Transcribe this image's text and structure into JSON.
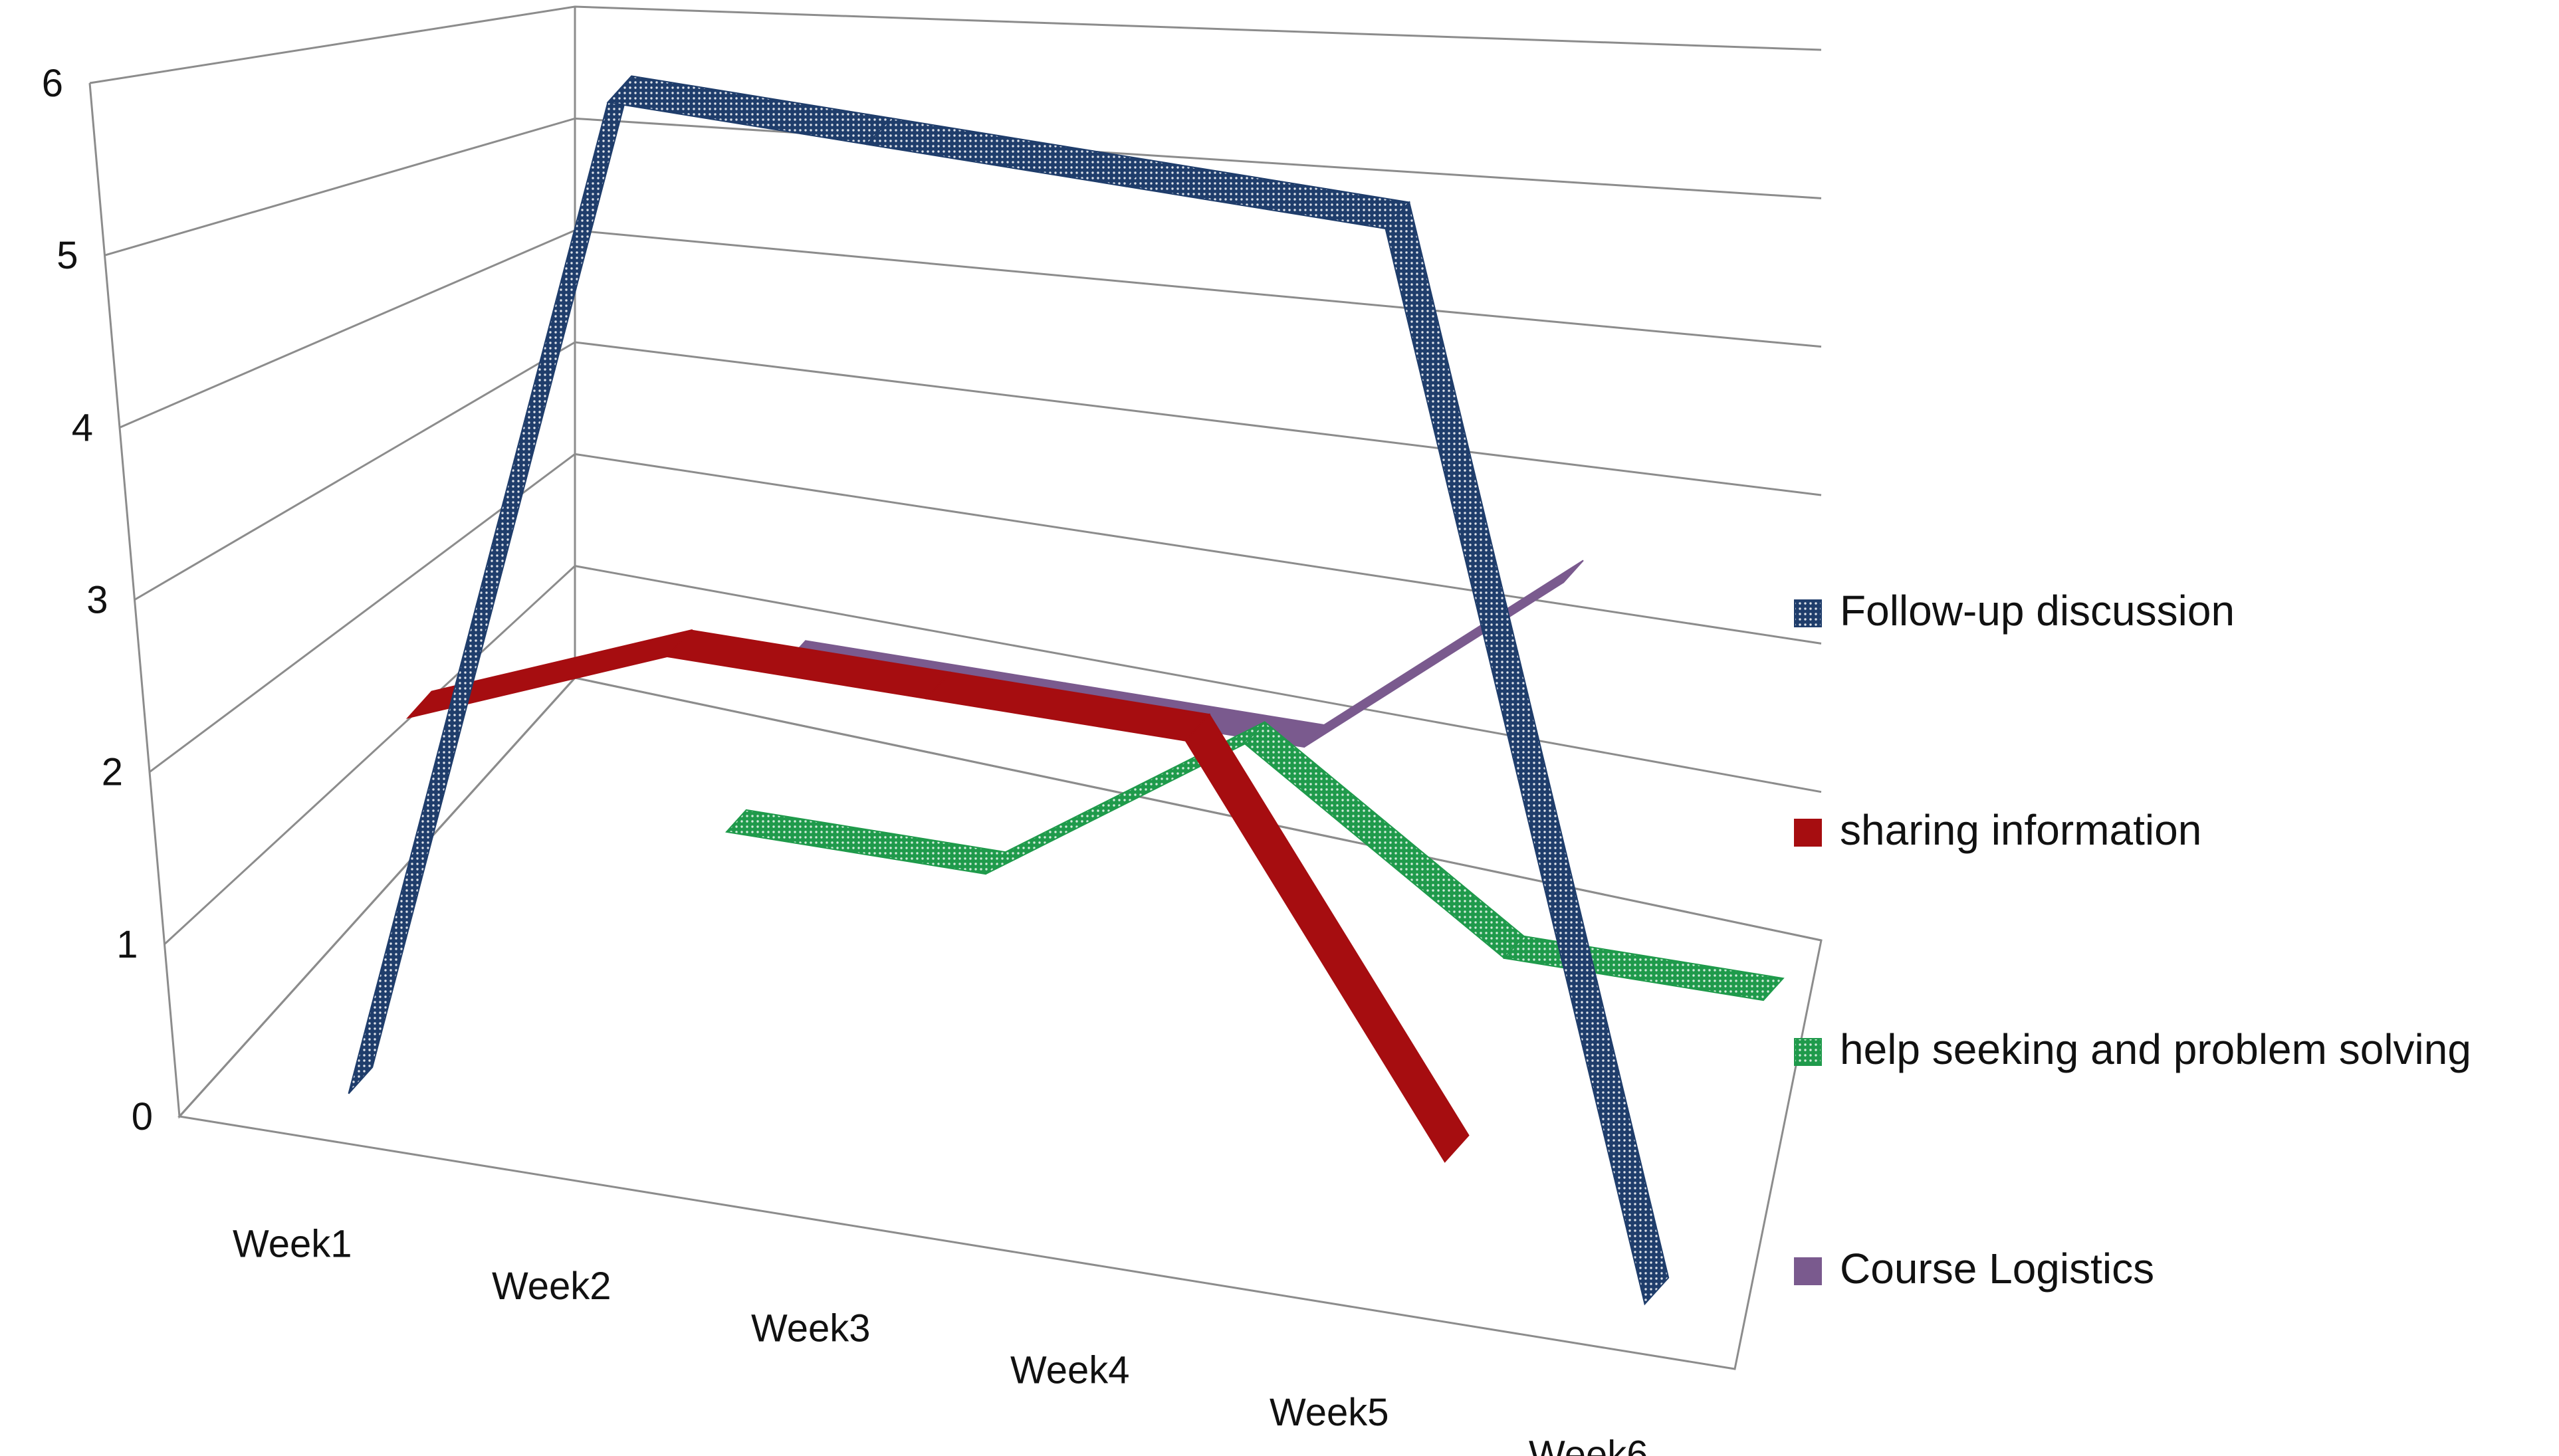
{
  "chart_data": {
    "type": "line",
    "style": "3d-ribbon",
    "categories": [
      "Week1",
      "Week2",
      "Week3",
      "Week4",
      "Week5",
      "Week6"
    ],
    "ylim": [
      0,
      6
    ],
    "yticks": [
      0,
      1,
      2,
      3,
      4,
      5,
      6
    ],
    "grid": true,
    "legend_position": "right",
    "series": [
      {
        "name": "Course Logistics",
        "values": [
          null,
          1.6,
          1.6,
          1.6,
          2.8,
          null
        ],
        "color": "#7a5a8e",
        "pattern": "solid"
      },
      {
        "name": "help seeking and problem solving",
        "values": [
          null,
          1,
          1,
          2,
          1,
          1
        ],
        "color": "#1f9a4b",
        "pattern": "dots"
      },
      {
        "name": "sharing information",
        "values": [
          1.8,
          2.4,
          2.4,
          2.4,
          0.2,
          null
        ],
        "color": "#a60d10",
        "pattern": "solid"
      },
      {
        "name": "Follow-up discussion",
        "values": [
          0,
          6,
          6,
          6,
          6,
          0
        ],
        "color": "#1f3d6b",
        "pattern": "dots"
      }
    ],
    "legend_order": [
      "Follow-up discussion",
      "sharing information",
      "help seeking and problem solving",
      "Course Logistics"
    ]
  }
}
